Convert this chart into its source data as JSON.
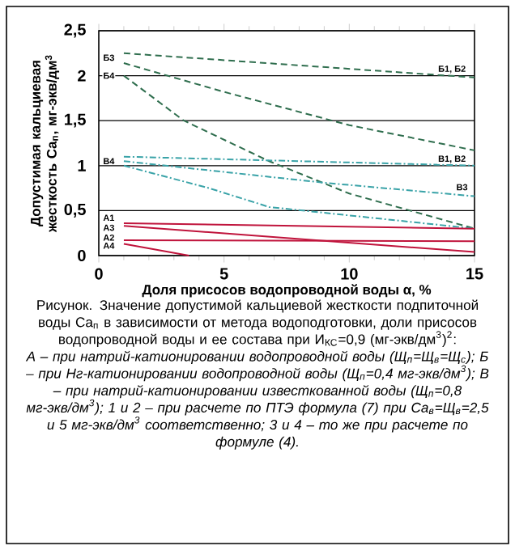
{
  "chart_data": {
    "type": "line",
    "xlabel": "Доля присосов водопроводной воды α, %",
    "ylabel": "Допустимая кальциевая жесткость Ca$_{п}$, мг-экв/дм$^{3}$",
    "xlim": [
      0,
      15
    ],
    "ylim": [
      0,
      2.5
    ],
    "xticks": [
      0,
      5,
      10,
      15
    ],
    "yticks": [
      0,
      {
        "value": 0.5,
        "label": "0,5"
      },
      1,
      {
        "value": 1.5,
        "label": "1,5"
      },
      2,
      {
        "value": 2.5,
        "label": "2,5"
      }
    ],
    "grid": "y",
    "marker": "none",
    "series": [
      {
        "color": "#2f6e4e",
        "line_style": "dashed",
        "x": [
          1,
          15
        ],
        "values": [
          2.25,
          1.98
        ]
      },
      {
        "color": "#2f6e4e",
        "line_style": "dashed",
        "x": [
          1,
          5,
          10,
          15
        ],
        "values": [
          2.14,
          1.82,
          1.45,
          1.17
        ]
      },
      {
        "color": "#2f6e4e",
        "line_style": "dashed",
        "x": [
          1,
          3.4,
          6.8,
          10,
          15
        ],
        "values": [
          2.0,
          1.5,
          1.05,
          0.69,
          0.3
        ]
      },
      {
        "color": "#3aa3a8",
        "line_style": "dashdot",
        "x": [
          1,
          15
        ],
        "values": [
          1.1,
          1.0
        ]
      },
      {
        "color": "#3aa3a8",
        "line_style": "dashdot",
        "x": [
          1,
          9,
          15
        ],
        "values": [
          1.05,
          0.81,
          0.66
        ]
      },
      {
        "color": "#3aa3a8",
        "line_style": "dashdot",
        "x": [
          1,
          4.4,
          6.8,
          15
        ],
        "values": [
          1.0,
          0.75,
          0.54,
          0.3
        ]
      },
      {
        "color": "#c0143c",
        "line_style": "solid",
        "x": [
          1,
          15
        ],
        "values": [
          0.36,
          0.3
        ]
      },
      {
        "color": "#c0143c",
        "line_style": "solid",
        "x": [
          1,
          15
        ],
        "values": [
          0.17,
          0.16
        ]
      },
      {
        "color": "#c0143c",
        "line_style": "solid",
        "x": [
          1,
          15
        ],
        "values": [
          0.33,
          0.04
        ]
      },
      {
        "color": "#c0143c",
        "line_style": "solid",
        "x": [
          1,
          3.6
        ],
        "values": [
          0.13,
          0
        ]
      }
    ],
    "annotations": [
      {
        "text": "Б1, Б2",
        "x": 14.1,
        "y": 2.07
      },
      {
        "text": "Б3",
        "x": 0.4,
        "y": 2.2
      },
      {
        "text": "Б4",
        "x": 0.4,
        "y": 2.0
      },
      {
        "text": "В4",
        "x": 0.4,
        "y": 1.05
      },
      {
        "text": "В1, В2",
        "x": 14.1,
        "y": 1.07
      },
      {
        "text": "В3",
        "x": 14.5,
        "y": 0.76
      },
      {
        "text": "А1",
        "x": 0.4,
        "y": 0.42
      },
      {
        "text": "А3",
        "x": 0.4,
        "y": 0.31
      },
      {
        "text": "А2",
        "x": 0.4,
        "y": 0.2
      },
      {
        "text": "А4",
        "x": 0.4,
        "y": 0.11
      },
      "Рисунок. Значение допустимой кальциевой жесткости подпиточной воды Ca$_{п}$ в зависимости от метода водоподготовки, доли присосов водопроводной воды и ее состава при И$_{КС}$=0,9 (мг-экв/дм$^{3}$)$^{2}$:",
      "А – при натрий-катионировании водопроводной воды (Щ$_{п}$=Щ$_{в}$=Щ$_{с}$); Б – при Нг-катионировании водопроводной воды (Щ$_{п}$=0,4 мг-экв/дм$^{3}$); В – при натрий-катионировании известкованной воды (Щ$_{п}$=0,8 мг-экв/дм$^{3}$); 1 и 2 – при расчете по ПТЭ формула (7) при Ca$_{в}$=Щ$_{в}$=2,5 и 5 мг-экв/дм$^{3}$ соответственно; 3 и 4 – то же при расчете по формуле (4)."
    ]
  }
}
